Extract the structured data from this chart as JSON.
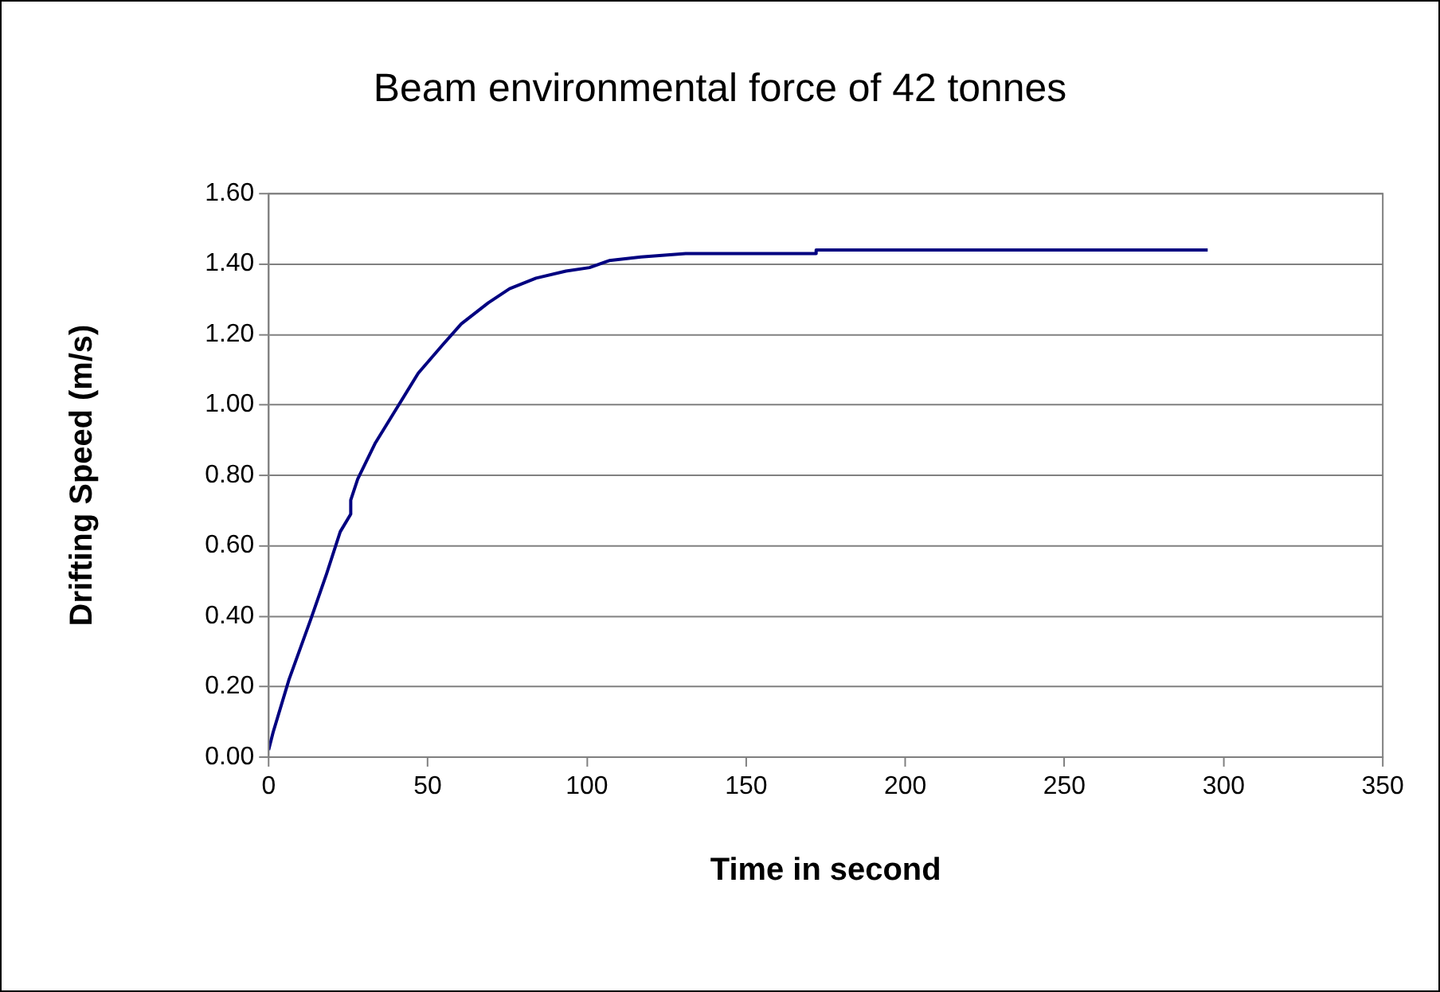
{
  "chart_data": {
    "type": "line",
    "title": "Beam environmental force of 42 tonnes",
    "xlabel": "Time in second",
    "ylabel": "Drifting Speed (m/s)",
    "x": [
      0,
      1.4,
      6.4,
      13.2,
      18.2,
      22.5,
      25.8,
      25.8,
      28,
      33.4,
      40.2,
      47,
      54.6,
      60.5,
      69,
      75.7,
      84,
      93.4,
      100.8,
      107,
      117,
      131,
      172,
      172,
      295
    ],
    "series": [
      {
        "color": "#000080",
        "values": [
          0.02,
          0.07,
          0.22,
          0.39,
          0.52,
          0.64,
          0.69,
          0.73,
          0.79,
          0.89,
          0.99,
          1.09,
          1.17,
          1.23,
          1.29,
          1.33,
          1.36,
          1.38,
          1.39,
          1.41,
          1.42,
          1.43,
          1.43,
          1.44,
          1.44
        ]
      }
    ],
    "xlim": [
      0,
      350
    ],
    "xticks": [
      0,
      50,
      100,
      150,
      200,
      250,
      300,
      350
    ],
    "ylim": [
      0,
      1.6
    ],
    "yticks": [
      {
        "value": 0,
        "label": "0.00"
      },
      {
        "value": 0.2,
        "label": "0.20"
      },
      {
        "value": 0.4,
        "label": "0.40"
      },
      {
        "value": 0.6,
        "label": "0.60"
      },
      {
        "value": 0.8,
        "label": "0.80"
      },
      {
        "value": 1.0,
        "label": "1.00"
      },
      {
        "value": 1.2,
        "label": "1.20"
      },
      {
        "value": 1.4,
        "label": "1.40"
      },
      {
        "value": 1.6,
        "label": "1.60"
      }
    ],
    "grid": "y",
    "legend": false,
    "marker": "none",
    "line_style": "solid"
  }
}
